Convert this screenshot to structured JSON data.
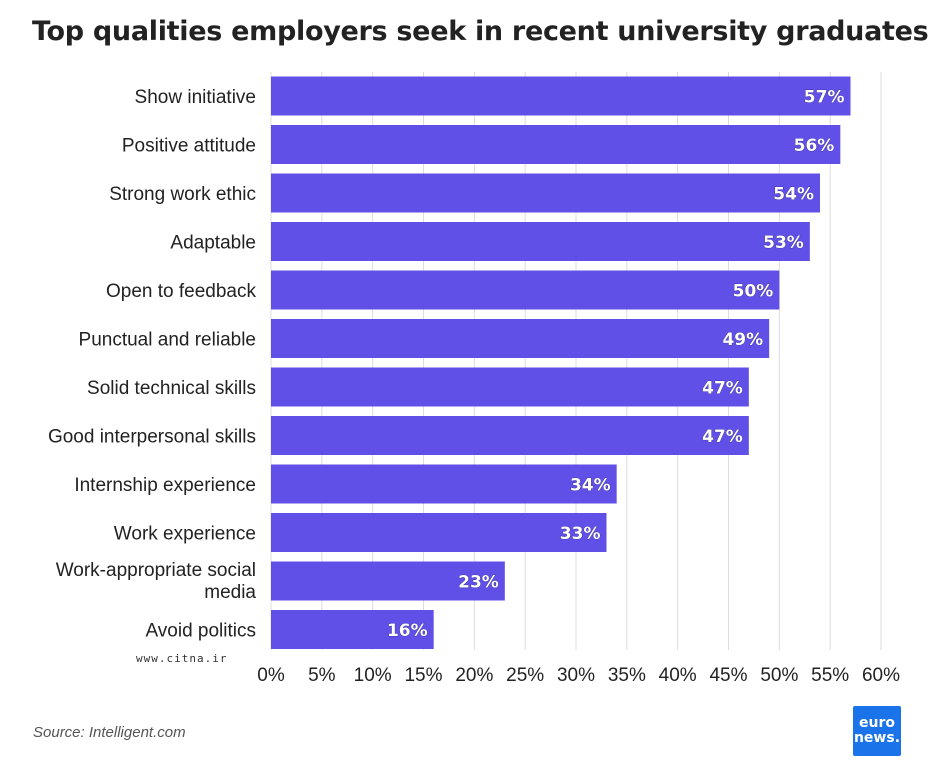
{
  "title": "Top qualities employers seek in recent university graduates",
  "source": "Source: Intelligent.com",
  "logo": {
    "line1": "euro",
    "line2": "news."
  },
  "watermark": "www.citna.ir",
  "colors": {
    "bar": "#6150e8",
    "grid": "#dddddd",
    "text": "#222222",
    "logo": "#1a73e8"
  },
  "chart_data": {
    "type": "bar",
    "orientation": "horizontal",
    "categories": [
      "Show initiative",
      "Positive attitude",
      "Strong work ethic",
      "Adaptable",
      "Open to feedback",
      "Punctual and reliable",
      "Solid technical skills",
      "Good interpersonal skills",
      "Internship experience",
      "Work experience",
      "Work-appropriate social media",
      "Avoid politics"
    ],
    "values": [
      57,
      56,
      54,
      53,
      50,
      49,
      47,
      47,
      34,
      33,
      23,
      16
    ],
    "data_labels": [
      "57%",
      "56%",
      "54%",
      "53%",
      "50%",
      "49%",
      "47%",
      "47%",
      "34%",
      "33%",
      "23%",
      "16%"
    ],
    "xlim": [
      0,
      60
    ],
    "x_ticks": [
      "0%",
      "5%",
      "10%",
      "15%",
      "20%",
      "25%",
      "30%",
      "35%",
      "40%",
      "45%",
      "50%",
      "55%",
      "60%"
    ],
    "grid": true
  }
}
